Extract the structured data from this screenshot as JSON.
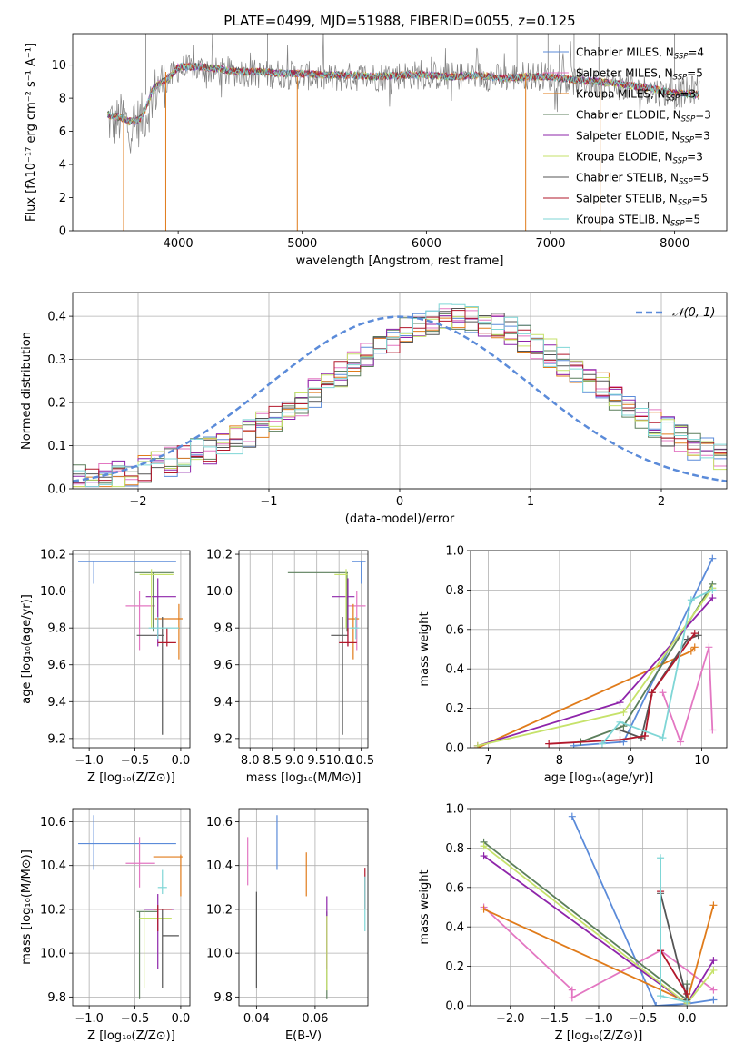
{
  "colors": [
    "#5b8bd9",
    "#e377c2",
    "#e07b1a",
    "#5c7f5c",
    "#8e24aa",
    "#c6e26a",
    "#555555",
    "#b2182b",
    "#7fd6d6"
  ],
  "chart_data": [
    {
      "id": "spectrum",
      "type": "line",
      "title": "PLATE=0499, MJD=51988, FIBERID=0055, z=0.125",
      "xlabel": "wavelength [Angstrom, rest frame]",
      "ylabel": "Flux [fλ10⁻¹⁷ erg cm⁻² s⁻¹ A⁻¹]",
      "xlim": [
        3150,
        8420
      ],
      "ylim": [
        0,
        11.9
      ],
      "xticks": [
        4000,
        5000,
        6000,
        7000,
        8000
      ],
      "yticks": [
        0,
        2,
        4,
        6,
        8,
        10
      ],
      "grid": false,
      "legend_position": "top-right",
      "data_trace": {
        "color": "#808080",
        "points": [
          [
            3430,
            6.7
          ],
          [
            3500,
            6.5
          ],
          [
            3560,
            6.9
          ],
          [
            3600,
            6.2
          ],
          [
            3650,
            6.4
          ],
          [
            3700,
            6.7
          ],
          [
            3750,
            7.2
          ],
          [
            3800,
            8.2
          ],
          [
            3850,
            8.9
          ],
          [
            3900,
            9.0
          ],
          [
            3950,
            9.3
          ],
          [
            4000,
            9.8
          ],
          [
            4100,
            9.7
          ],
          [
            4200,
            9.8
          ],
          [
            4300,
            9.6
          ],
          [
            4400,
            9.5
          ],
          [
            4500,
            9.6
          ],
          [
            4600,
            9.5
          ],
          [
            4700,
            9.4
          ],
          [
            4800,
            9.5
          ],
          [
            4900,
            9.4
          ],
          [
            5000,
            9.4
          ],
          [
            5200,
            9.2
          ],
          [
            5400,
            9.3
          ],
          [
            5600,
            9.3
          ],
          [
            5800,
            9.4
          ],
          [
            6000,
            9.4
          ],
          [
            6200,
            9.3
          ],
          [
            6400,
            9.4
          ],
          [
            6600,
            9.2
          ],
          [
            6800,
            9.4
          ],
          [
            7000,
            9.3
          ],
          [
            7200,
            9.0
          ],
          [
            7400,
            8.9
          ],
          [
            7600,
            8.7
          ],
          [
            7800,
            8.5
          ],
          [
            8000,
            8.2
          ],
          [
            8200,
            8.6
          ]
        ]
      },
      "model_trace": {
        "points": [
          [
            3430,
            7.0
          ],
          [
            3500,
            6.9
          ],
          [
            3560,
            6.8
          ],
          [
            3600,
            6.6
          ],
          [
            3650,
            6.6
          ],
          [
            3700,
            6.8
          ],
          [
            3750,
            7.6
          ],
          [
            3800,
            8.6
          ],
          [
            3850,
            8.9
          ],
          [
            3900,
            9.1
          ],
          [
            3950,
            9.4
          ],
          [
            4000,
            9.9
          ],
          [
            4100,
            9.9
          ],
          [
            4200,
            9.9
          ],
          [
            4300,
            9.8
          ],
          [
            4400,
            9.7
          ],
          [
            4500,
            9.6
          ],
          [
            4600,
            9.6
          ],
          [
            4700,
            9.6
          ],
          [
            4800,
            9.5
          ],
          [
            4900,
            9.5
          ],
          [
            5000,
            9.5
          ],
          [
            5200,
            9.4
          ],
          [
            5400,
            9.4
          ],
          [
            5600,
            9.3
          ],
          [
            5800,
            9.4
          ],
          [
            6000,
            9.4
          ],
          [
            6200,
            9.3
          ],
          [
            6400,
            9.4
          ],
          [
            6600,
            9.2
          ],
          [
            6800,
            9.3
          ],
          [
            7000,
            9.3
          ],
          [
            7200,
            9.1
          ],
          [
            7400,
            9.0
          ],
          [
            7600,
            8.8
          ],
          [
            7800,
            8.6
          ],
          [
            8000,
            8.3
          ],
          [
            8200,
            8.2
          ]
        ]
      },
      "series": [
        {
          "name": "Chabrier MILES, N",
          "sub": "SSP",
          "suffix": "=4"
        },
        {
          "name": "Salpeter MILES, N",
          "sub": "SSP",
          "suffix": "=5"
        },
        {
          "name": "Kroupa MILES, N",
          "sub": "SSP",
          "suffix": "=3"
        },
        {
          "name": "Chabrier ELODIE, N",
          "sub": "SSP",
          "suffix": "=3"
        },
        {
          "name": "Salpeter ELODIE, N",
          "sub": "SSP",
          "suffix": "=3"
        },
        {
          "name": "Kroupa ELODIE, N",
          "sub": "SSP",
          "suffix": "=3"
        },
        {
          "name": "Chabrier STELIB, N",
          "sub": "SSP",
          "suffix": "=5"
        },
        {
          "name": "Salpeter STELIB, N",
          "sub": "SSP",
          "suffix": "=5"
        },
        {
          "name": "Kroupa STELIB, N",
          "sub": "SSP",
          "suffix": "=5"
        }
      ]
    },
    {
      "id": "residual-histogram",
      "type": "step",
      "xlabel": "(data-model)/error",
      "ylabel": "Normed distribution",
      "xlim": [
        -2.5,
        2.5
      ],
      "ylim": [
        0,
        0.455
      ],
      "xticks": [
        -2,
        -1,
        0,
        1,
        2
      ],
      "yticks": [
        0.0,
        0.1,
        0.2,
        0.3,
        0.4
      ],
      "grid": true,
      "legend_position": "top-right",
      "reference_curve": {
        "label": "𝒩(0, 1)",
        "color": "#5b8bd9",
        "mean": 0,
        "sigma": 1
      },
      "bin_edges_step": 0.1,
      "bins": 50,
      "base_profile": [
        0.022,
        0.025,
        0.028,
        0.033,
        0.038,
        0.045,
        0.055,
        0.062,
        0.073,
        0.083,
        0.092,
        0.102,
        0.115,
        0.13,
        0.145,
        0.163,
        0.182,
        0.2,
        0.222,
        0.245,
        0.265,
        0.285,
        0.308,
        0.33,
        0.35,
        0.365,
        0.378,
        0.388,
        0.393,
        0.393,
        0.392,
        0.385,
        0.377,
        0.365,
        0.35,
        0.335,
        0.315,
        0.295,
        0.275,
        0.255,
        0.235,
        0.213,
        0.192,
        0.17,
        0.15,
        0.132,
        0.115,
        0.1,
        0.085,
        0.072
      ]
    },
    {
      "id": "age-vs-metallicity",
      "type": "errorbar",
      "xlabel": "Z [log₁₀(Z/Z⊙)]",
      "ylabel": "age  [log₁₀(age/yr)]",
      "xlim": [
        -1.18,
        0.1
      ],
      "ylim": [
        9.15,
        10.22
      ],
      "xticks": [
        -1.0,
        -0.5,
        0.0
      ],
      "yticks": [
        9.2,
        9.4,
        9.6,
        9.8,
        10.0,
        10.2
      ],
      "grid": true,
      "points": [
        {
          "x": -0.95,
          "y": 10.16,
          "xlo": -1.12,
          "xhi": -0.05,
          "ylo": 10.04,
          "yhi": 10.16
        },
        {
          "x": -0.45,
          "y": 9.92,
          "xlo": -0.6,
          "xhi": -0.28,
          "ylo": 9.68,
          "yhi": 10.0
        },
        {
          "x": -0.02,
          "y": 9.85,
          "xlo": -0.28,
          "xhi": 0.02,
          "ylo": 9.63,
          "yhi": 9.93
        },
        {
          "x": -0.3,
          "y": 10.1,
          "xlo": -0.5,
          "xhi": -0.08,
          "ylo": 9.78,
          "yhi": 10.1
        },
        {
          "x": -0.25,
          "y": 9.97,
          "xlo": -0.38,
          "xhi": -0.05,
          "ylo": 9.7,
          "yhi": 10.07
        },
        {
          "x": -0.32,
          "y": 10.09,
          "xlo": -0.45,
          "xhi": -0.08,
          "ylo": 9.8,
          "yhi": 10.12
        },
        {
          "x": -0.2,
          "y": 9.76,
          "xlo": -0.48,
          "xhi": -0.18,
          "ylo": 9.22,
          "yhi": 9.86
        },
        {
          "x": -0.15,
          "y": 9.72,
          "xlo": -0.25,
          "xhi": -0.05,
          "ylo": 9.7,
          "yhi": 9.8
        },
        {
          "x": -0.25,
          "y": 9.8,
          "xlo": -0.35,
          "xhi": -0.02,
          "ylo": 9.74,
          "yhi": 9.86
        }
      ]
    },
    {
      "id": "age-vs-mass",
      "type": "errorbar",
      "xlabel": "mass [log₁₀(M/M⊙)]",
      "ylabel": "",
      "xlim": [
        7.75,
        10.65
      ],
      "ylim": [
        9.15,
        10.22
      ],
      "xticks": [
        8.0,
        8.5,
        9.0,
        9.5,
        10.0,
        10.5
      ],
      "yticks": [
        9.2,
        9.4,
        9.6,
        9.8,
        10.0,
        10.2
      ],
      "grid": true,
      "points": [
        {
          "x": 10.5,
          "y": 10.16,
          "xlo": 10.3,
          "xhi": 10.6,
          "ylo": 10.04,
          "yhi": 10.16
        },
        {
          "x": 10.4,
          "y": 9.92,
          "xlo": 10.2,
          "xhi": 10.6,
          "ylo": 9.68,
          "yhi": 10.0
        },
        {
          "x": 10.32,
          "y": 9.85,
          "xlo": 10.15,
          "xhi": 10.45,
          "ylo": 9.63,
          "yhi": 9.93
        },
        {
          "x": 10.18,
          "y": 10.1,
          "xlo": 8.85,
          "xhi": 10.2,
          "ylo": 9.78,
          "yhi": 10.1
        },
        {
          "x": 10.2,
          "y": 9.97,
          "xlo": 9.85,
          "xhi": 10.35,
          "ylo": 9.7,
          "yhi": 10.07
        },
        {
          "x": 10.16,
          "y": 10.09,
          "xlo": 9.9,
          "xhi": 10.2,
          "ylo": 9.8,
          "yhi": 10.12
        },
        {
          "x": 10.08,
          "y": 9.76,
          "xlo": 9.82,
          "xhi": 10.2,
          "ylo": 9.22,
          "yhi": 9.86
        },
        {
          "x": 10.2,
          "y": 9.72,
          "xlo": 10.0,
          "xhi": 10.4,
          "ylo": 9.7,
          "yhi": 9.8
        },
        {
          "x": 10.38,
          "y": 9.8,
          "xlo": 10.25,
          "xhi": 10.45,
          "ylo": 9.74,
          "yhi": 9.86
        }
      ]
    },
    {
      "id": "mass-weight-vs-age",
      "type": "line",
      "xlabel": "age  [log₁₀(age/yr)]",
      "ylabel": "mass weight",
      "xlim": [
        6.75,
        10.35
      ],
      "ylim": [
        0,
        1.0
      ],
      "xticks": [
        7,
        8,
        9,
        10
      ],
      "yticks": [
        0.0,
        0.2,
        0.4,
        0.6,
        0.8,
        1.0
      ],
      "grid": true,
      "series": [
        {
          "x": [
            8.2,
            8.9,
            10.15
          ],
          "y": [
            0.01,
            0.03,
            0.96
          ]
        },
        {
          "x": [
            9.45,
            9.7,
            10.1,
            10.15
          ],
          "y": [
            0.28,
            0.03,
            0.51,
            0.09
          ]
        },
        {
          "x": [
            6.85,
            9.85,
            9.9
          ],
          "y": [
            0.0,
            0.49,
            0.51
          ]
        },
        {
          "x": [
            8.3,
            8.9,
            10.15
          ],
          "y": [
            0.03,
            0.11,
            0.83
          ]
        },
        {
          "x": [
            6.85,
            8.85,
            10.15
          ],
          "y": [
            0.01,
            0.23,
            0.76
          ]
        },
        {
          "x": [
            6.85,
            8.9,
            10.15
          ],
          "y": [
            0.01,
            0.18,
            0.81
          ]
        },
        {
          "x": [
            8.85,
            9.15,
            9.3,
            9.8,
            9.95
          ],
          "y": [
            0.09,
            0.05,
            0.28,
            0.55,
            0.57
          ]
        },
        {
          "x": [
            7.85,
            8.85,
            9.2,
            9.3,
            9.9
          ],
          "y": [
            0.02,
            0.04,
            0.06,
            0.28,
            0.58
          ]
        },
        {
          "x": [
            8.6,
            8.85,
            9.45,
            9.85,
            10.15
          ],
          "y": [
            0.02,
            0.13,
            0.05,
            0.75,
            0.8
          ]
        }
      ]
    },
    {
      "id": "mass-vs-metallicity",
      "type": "errorbar",
      "xlabel": "Z [log₁₀(Z/Z⊙)]",
      "ylabel": "mass [log₁₀(M/M⊙)]",
      "xlim": [
        -1.18,
        0.1
      ],
      "ylim": [
        9.76,
        10.66
      ],
      "xticks": [
        -1.0,
        -0.5,
        0.0
      ],
      "yticks": [
        9.8,
        10.0,
        10.2,
        10.4,
        10.6
      ],
      "grid": true,
      "points": [
        {
          "x": -0.95,
          "y": 10.5,
          "xlo": -1.12,
          "xhi": -0.05,
          "ylo": 10.38,
          "yhi": 10.63
        },
        {
          "x": -0.45,
          "y": 10.41,
          "xlo": -0.6,
          "xhi": -0.28,
          "ylo": 10.3,
          "yhi": 10.53
        },
        {
          "x": 0.0,
          "y": 10.44,
          "xlo": -0.3,
          "xhi": 0.02,
          "ylo": 10.26,
          "yhi": 10.45
        },
        {
          "x": -0.45,
          "y": 10.19,
          "xlo": -0.48,
          "xhi": -0.25,
          "ylo": 9.79,
          "yhi": 10.19
        },
        {
          "x": -0.25,
          "y": 10.2,
          "xlo": -0.4,
          "xhi": -0.08,
          "ylo": 9.93,
          "yhi": 10.27
        },
        {
          "x": -0.4,
          "y": 10.16,
          "xlo": -0.45,
          "xhi": -0.1,
          "ylo": 9.84,
          "yhi": 10.2
        },
        {
          "x": -0.2,
          "y": 10.08,
          "xlo": -0.2,
          "xhi": -0.02,
          "ylo": 9.84,
          "yhi": 10.2
        },
        {
          "x": -0.25,
          "y": 10.2,
          "xlo": -0.3,
          "xhi": -0.1,
          "ylo": 10.1,
          "yhi": 10.22
        },
        {
          "x": -0.2,
          "y": 10.3,
          "xlo": -0.25,
          "xhi": -0.15,
          "ylo": 10.27,
          "yhi": 10.38
        }
      ]
    },
    {
      "id": "mass-vs-ebv",
      "type": "errorbar",
      "xlabel": "E(B-V)",
      "ylabel": "",
      "xlim": [
        0.034,
        0.078
      ],
      "ylim": [
        9.76,
        10.66
      ],
      "xticks": [
        0.04,
        0.06
      ],
      "yticks": [
        9.8,
        10.0,
        10.2,
        10.4,
        10.6
      ],
      "grid": true,
      "points": [
        {
          "x": 0.047,
          "y": 10.5,
          "ylo": 10.38,
          "yhi": 10.63
        },
        {
          "x": 0.037,
          "y": 10.41,
          "ylo": 10.31,
          "yhi": 10.53
        },
        {
          "x": 0.057,
          "y": 10.36,
          "ylo": 10.26,
          "yhi": 10.46
        },
        {
          "x": 0.064,
          "y": 10.0,
          "ylo": 9.79,
          "yhi": 10.19
        },
        {
          "x": 0.064,
          "y": 10.2,
          "ylo": 9.93,
          "yhi": 10.26
        },
        {
          "x": 0.064,
          "y": 10.0,
          "ylo": 9.83,
          "yhi": 10.17
        },
        {
          "x": 0.04,
          "y": 10.06,
          "ylo": 9.84,
          "yhi": 10.28
        },
        {
          "x": 0.077,
          "y": 10.3,
          "ylo": 10.2,
          "yhi": 10.39
        },
        {
          "x": 0.077,
          "y": 10.2,
          "ylo": 10.1,
          "yhi": 10.35
        }
      ]
    },
    {
      "id": "mass-weight-vs-metallicity",
      "type": "line",
      "xlabel": "Z [log₁₀(Z/Z⊙)]",
      "ylabel": "mass weight",
      "xlim": [
        -2.45,
        0.45
      ],
      "ylim": [
        0,
        1.0
      ],
      "xticks": [
        -2.0,
        -1.5,
        -1.0,
        -0.5,
        0.0
      ],
      "yticks": [
        0.0,
        0.2,
        0.4,
        0.6,
        0.8,
        1.0
      ],
      "grid": true,
      "series": [
        {
          "x": [
            -1.3,
            -0.35,
            0.0,
            0.3
          ],
          "y": [
            0.96,
            0.0,
            0.01,
            0.03
          ]
        },
        {
          "x": [
            -2.3,
            -1.3,
            -1.3,
            -0.3,
            0.3
          ],
          "y": [
            0.5,
            0.08,
            0.04,
            0.28,
            0.08
          ]
        },
        {
          "x": [
            -2.3,
            0.0,
            0.3
          ],
          "y": [
            0.49,
            0.02,
            0.51
          ]
        },
        {
          "x": [
            -2.3,
            0.0,
            0.0
          ],
          "y": [
            0.83,
            0.03,
            0.11
          ]
        },
        {
          "x": [
            -2.3,
            0.0,
            0.3
          ],
          "y": [
            0.76,
            0.01,
            0.23
          ]
        },
        {
          "x": [
            -2.3,
            0.0,
            0.3
          ],
          "y": [
            0.81,
            0.01,
            0.18
          ]
        },
        {
          "x": [
            -0.3,
            0.0,
            0.0
          ],
          "y": [
            0.57,
            0.03,
            0.09
          ]
        },
        {
          "x": [
            -0.3,
            -0.3,
            0.0
          ],
          "y": [
            0.58,
            0.28,
            0.06
          ]
        },
        {
          "x": [
            -0.3,
            -0.3,
            0.0
          ],
          "y": [
            0.75,
            0.05,
            0.02
          ]
        }
      ]
    }
  ]
}
